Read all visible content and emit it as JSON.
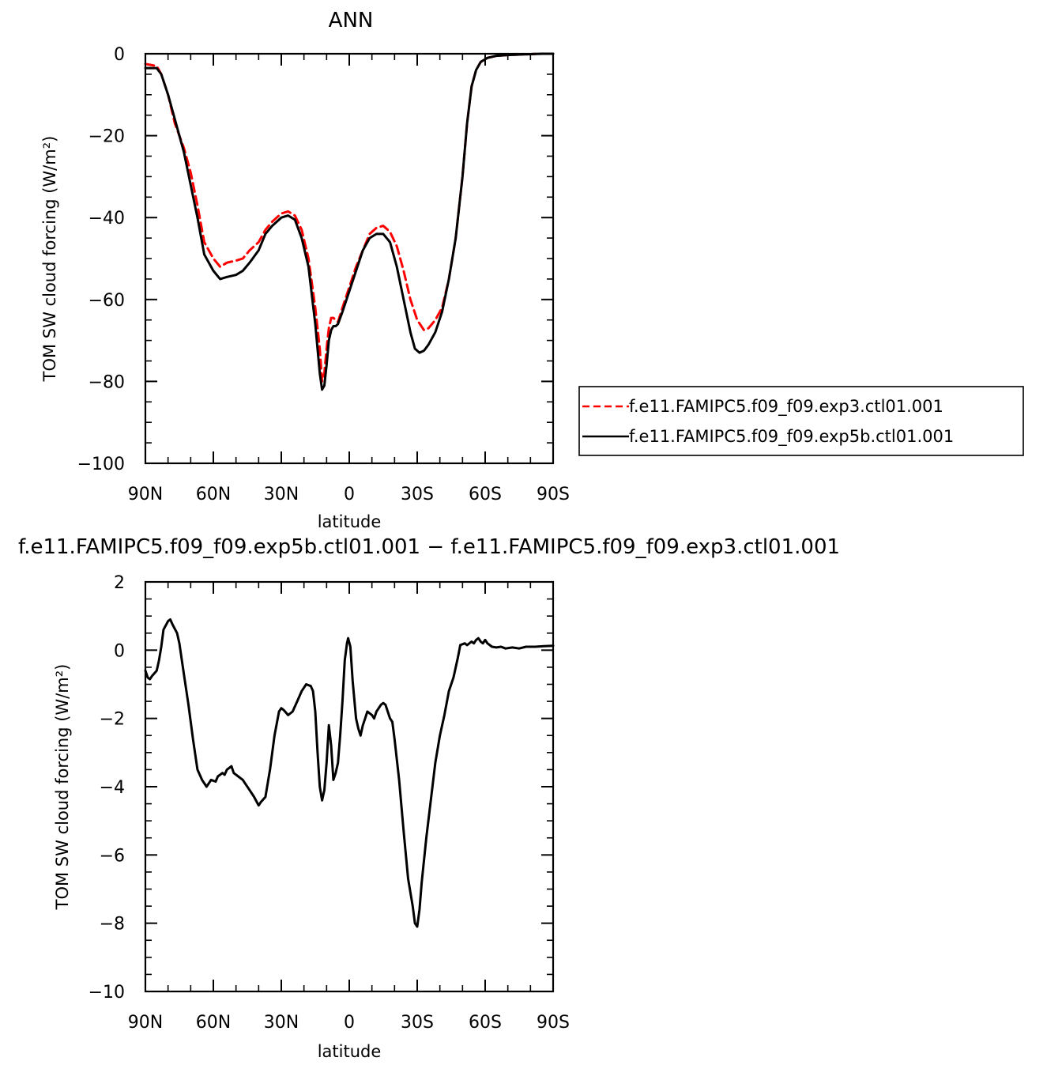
{
  "chart_data": [
    {
      "type": "line",
      "title": "ANN",
      "xlabel": "latitude",
      "ylabel": "TOM SW cloud forcing (W/m²)",
      "ylim": [
        -100,
        0
      ],
      "xlim": [
        90,
        -90
      ],
      "xticks": [
        {
          "value": 90,
          "label": "90N"
        },
        {
          "value": 60,
          "label": "60N"
        },
        {
          "value": 30,
          "label": "30N"
        },
        {
          "value": 0,
          "label": "0"
        },
        {
          "value": -30,
          "label": "30S"
        },
        {
          "value": -60,
          "label": "60S"
        },
        {
          "value": -90,
          "label": "90S"
        }
      ],
      "yticks": [
        {
          "value": 0,
          "label": "0"
        },
        {
          "value": -20,
          "label": "−20"
        },
        {
          "value": -40,
          "label": "−40"
        },
        {
          "value": -60,
          "label": "−60"
        },
        {
          "value": -80,
          "label": "−80"
        },
        {
          "value": -100,
          "label": "−100"
        }
      ],
      "legend_position": "right",
      "series": [
        {
          "name": "f.e11.FAMIPC5.f09_f09.exp3.ctl01.001",
          "color": "#ff0000",
          "style": "dashed",
          "points": [
            [
              90,
              -2.5
            ],
            [
              85,
              -3
            ],
            [
              83,
              -5
            ],
            [
              80,
              -10
            ],
            [
              77,
              -17
            ],
            [
              73,
              -23
            ],
            [
              70,
              -29
            ],
            [
              67,
              -37
            ],
            [
              64,
              -46
            ],
            [
              60,
              -50
            ],
            [
              57,
              -52
            ],
            [
              54,
              -51
            ],
            [
              50,
              -50.5
            ],
            [
              47,
              -50
            ],
            [
              44,
              -48
            ],
            [
              40,
              -46
            ],
            [
              37,
              -43
            ],
            [
              34,
              -41
            ],
            [
              30,
              -39
            ],
            [
              27,
              -38.5
            ],
            [
              24,
              -39.5
            ],
            [
              21,
              -43
            ],
            [
              18,
              -50
            ],
            [
              15,
              -62
            ],
            [
              13,
              -72
            ],
            [
              12,
              -80
            ],
            [
              11,
              -78
            ],
            [
              10,
              -72
            ],
            [
              9,
              -67
            ],
            [
              8,
              -64.5
            ],
            [
              7,
              -64.5
            ],
            [
              6,
              -65
            ],
            [
              5,
              -65.5
            ],
            [
              3,
              -62
            ],
            [
              0,
              -57
            ],
            [
              -3,
              -52
            ],
            [
              -6,
              -48
            ],
            [
              -9,
              -44
            ],
            [
              -12,
              -42.5
            ],
            [
              -15,
              -42
            ],
            [
              -18,
              -43.5
            ],
            [
              -21,
              -47
            ],
            [
              -24,
              -53
            ],
            [
              -27,
              -60
            ],
            [
              -30,
              -65
            ],
            [
              -33,
              -67.5
            ],
            [
              -35,
              -67
            ],
            [
              -38,
              -65
            ],
            [
              -41,
              -62
            ],
            [
              -44,
              -55
            ],
            [
              -47,
              -45
            ],
            [
              -50,
              -30
            ],
            [
              -52,
              -17
            ],
            [
              -54,
              -8
            ],
            [
              -56,
              -4
            ],
            [
              -58,
              -2
            ],
            [
              -61,
              -1
            ],
            [
              -65,
              -0.5
            ],
            [
              -70,
              -0.3
            ],
            [
              -75,
              -0.2
            ],
            [
              -80,
              -0.1
            ],
            [
              -85,
              0
            ],
            [
              -90,
              0
            ]
          ]
        },
        {
          "name": "f.e11.FAMIPC5.f09_f09.exp5b.ctl01.001",
          "color": "#000000",
          "style": "solid",
          "points": [
            [
              90,
              -3.5
            ],
            [
              85,
              -3.5
            ],
            [
              83,
              -5
            ],
            [
              80,
              -10
            ],
            [
              77,
              -16
            ],
            [
              73,
              -24
            ],
            [
              70,
              -32
            ],
            [
              67,
              -40
            ],
            [
              64,
              -49
            ],
            [
              60,
              -53
            ],
            [
              57,
              -55
            ],
            [
              54,
              -54.5
            ],
            [
              50,
              -54
            ],
            [
              47,
              -53
            ],
            [
              44,
              -51
            ],
            [
              40,
              -48
            ],
            [
              37,
              -44
            ],
            [
              34,
              -42
            ],
            [
              30,
              -40
            ],
            [
              27,
              -39.5
            ],
            [
              24,
              -40.5
            ],
            [
              21,
              -45
            ],
            [
              18,
              -52
            ],
            [
              15,
              -66
            ],
            [
              13,
              -78
            ],
            [
              12,
              -82
            ],
            [
              11,
              -81
            ],
            [
              10,
              -76
            ],
            [
              9,
              -70
            ],
            [
              8,
              -67.5
            ],
            [
              7,
              -66.5
            ],
            [
              6,
              -66.5
            ],
            [
              5,
              -66
            ],
            [
              3,
              -63
            ],
            [
              0,
              -58
            ],
            [
              -3,
              -53
            ],
            [
              -6,
              -48
            ],
            [
              -9,
              -45
            ],
            [
              -12,
              -44
            ],
            [
              -15,
              -44
            ],
            [
              -18,
              -46
            ],
            [
              -21,
              -52
            ],
            [
              -24,
              -60
            ],
            [
              -27,
              -68
            ],
            [
              -29,
              -72
            ],
            [
              -31,
              -73
            ],
            [
              -33,
              -72.5
            ],
            [
              -35,
              -71
            ],
            [
              -38,
              -68
            ],
            [
              -41,
              -63
            ],
            [
              -44,
              -55
            ],
            [
              -47,
              -45
            ],
            [
              -50,
              -30
            ],
            [
              -52,
              -17
            ],
            [
              -54,
              -8
            ],
            [
              -56,
              -4
            ],
            [
              -58,
              -2
            ],
            [
              -61,
              -1
            ],
            [
              -65,
              -0.5
            ],
            [
              -70,
              -0.3
            ],
            [
              -75,
              -0.2
            ],
            [
              -80,
              -0.1
            ],
            [
              -85,
              0
            ],
            [
              -90,
              0
            ]
          ]
        }
      ]
    },
    {
      "type": "line",
      "title": "f.e11.FAMIPC5.f09_f09.exp5b.ctl01.001 − f.e11.FAMIPC5.f09_f09.exp3.ctl01.001",
      "xlabel": "latitude",
      "ylabel": "TOM SW cloud forcing (W/m²)",
      "ylim": [
        -10,
        2
      ],
      "xlim": [
        90,
        -90
      ],
      "xticks": [
        {
          "value": 90,
          "label": "90N"
        },
        {
          "value": 60,
          "label": "60N"
        },
        {
          "value": 30,
          "label": "30N"
        },
        {
          "value": 0,
          "label": "0"
        },
        {
          "value": -30,
          "label": "30S"
        },
        {
          "value": -60,
          "label": "60S"
        },
        {
          "value": -90,
          "label": "90S"
        }
      ],
      "yticks": [
        {
          "value": 2,
          "label": "2"
        },
        {
          "value": 0,
          "label": "0"
        },
        {
          "value": -2,
          "label": "−2"
        },
        {
          "value": -4,
          "label": "−4"
        },
        {
          "value": -6,
          "label": "−6"
        },
        {
          "value": -8,
          "label": "−8"
        },
        {
          "value": -10,
          "label": "−10"
        }
      ],
      "series": [
        {
          "color": "#000000",
          "style": "solid",
          "points": [
            [
              90,
              -0.6
            ],
            [
              89,
              -0.8
            ],
            [
              88,
              -0.85
            ],
            [
              87,
              -0.75
            ],
            [
              85,
              -0.6
            ],
            [
              84,
              -0.3
            ],
            [
              83,
              0.1
            ],
            [
              82,
              0.6
            ],
            [
              80,
              0.85
            ],
            [
              79,
              0.9
            ],
            [
              78,
              0.75
            ],
            [
              76,
              0.5
            ],
            [
              75,
              0.2
            ],
            [
              73,
              -0.7
            ],
            [
              71,
              -1.6
            ],
            [
              69,
              -2.6
            ],
            [
              67,
              -3.5
            ],
            [
              65,
              -3.8
            ],
            [
              63,
              -4.0
            ],
            [
              62,
              -3.9
            ],
            [
              61,
              -3.8
            ],
            [
              59,
              -3.85
            ],
            [
              58,
              -3.7
            ],
            [
              56,
              -3.6
            ],
            [
              55,
              -3.65
            ],
            [
              54,
              -3.5
            ],
            [
              52,
              -3.4
            ],
            [
              51,
              -3.6
            ],
            [
              49,
              -3.7
            ],
            [
              47,
              -3.8
            ],
            [
              46,
              -3.9
            ],
            [
              44,
              -4.1
            ],
            [
              42,
              -4.3
            ],
            [
              40,
              -4.55
            ],
            [
              39,
              -4.45
            ],
            [
              37,
              -4.3
            ],
            [
              35,
              -3.5
            ],
            [
              33,
              -2.5
            ],
            [
              31,
              -1.8
            ],
            [
              30,
              -1.7
            ],
            [
              29,
              -1.75
            ],
            [
              27,
              -1.9
            ],
            [
              25,
              -1.8
            ],
            [
              23,
              -1.5
            ],
            [
              21,
              -1.2
            ],
            [
              19,
              -1.0
            ],
            [
              17,
              -1.05
            ],
            [
              16,
              -1.2
            ],
            [
              15,
              -1.8
            ],
            [
              14,
              -3.0
            ],
            [
              13,
              -4.0
            ],
            [
              12,
              -4.4
            ],
            [
              11,
              -4.1
            ],
            [
              10,
              -3.3
            ],
            [
              9,
              -2.2
            ],
            [
              8,
              -2.8
            ],
            [
              7,
              -3.8
            ],
            [
              6,
              -3.6
            ],
            [
              5,
              -3.3
            ],
            [
              4,
              -2.5
            ],
            [
              3,
              -1.5
            ],
            [
              2,
              -0.3
            ],
            [
              1,
              0.2
            ],
            [
              0.5,
              0.35
            ],
            [
              -0.5,
              0.1
            ],
            [
              -1.5,
              -0.9
            ],
            [
              -3,
              -2.0
            ],
            [
              -4,
              -2.3
            ],
            [
              -5,
              -2.5
            ],
            [
              -6,
              -2.2
            ],
            [
              -7,
              -2.0
            ],
            [
              -8,
              -1.8
            ],
            [
              -9,
              -1.85
            ],
            [
              -10,
              -1.9
            ],
            [
              -11,
              -2.0
            ],
            [
              -12,
              -1.8
            ],
            [
              -14,
              -1.6
            ],
            [
              -15,
              -1.55
            ],
            [
              -16,
              -1.6
            ],
            [
              -17,
              -1.8
            ],
            [
              -18,
              -2.0
            ],
            [
              -19,
              -2.1
            ],
            [
              -20,
              -2.6
            ],
            [
              -22,
              -3.8
            ],
            [
              -24,
              -5.3
            ],
            [
              -26,
              -6.7
            ],
            [
              -28,
              -7.5
            ],
            [
              -29,
              -8.0
            ],
            [
              -30,
              -8.1
            ],
            [
              -31,
              -7.6
            ],
            [
              -32,
              -6.8
            ],
            [
              -34,
              -5.5
            ],
            [
              -36,
              -4.4
            ],
            [
              -38,
              -3.3
            ],
            [
              -40,
              -2.5
            ],
            [
              -42,
              -1.9
            ],
            [
              -44,
              -1.2
            ],
            [
              -46,
              -0.8
            ],
            [
              -48,
              -0.2
            ],
            [
              -49,
              0.15
            ],
            [
              -51,
              0.2
            ],
            [
              -52,
              0.15
            ],
            [
              -54,
              0.25
            ],
            [
              -55,
              0.2
            ],
            [
              -56,
              0.3
            ],
            [
              -57,
              0.35
            ],
            [
              -58,
              0.25
            ],
            [
              -59,
              0.2
            ],
            [
              -60,
              0.3
            ],
            [
              -61,
              0.2
            ],
            [
              -63,
              0.1
            ],
            [
              -65,
              0.08
            ],
            [
              -67,
              0.1
            ],
            [
              -69,
              0.05
            ],
            [
              -72,
              0.08
            ],
            [
              -75,
              0.05
            ],
            [
              -78,
              0.1
            ],
            [
              -82,
              0.1
            ],
            [
              -86,
              0.12
            ],
            [
              -90,
              0.13
            ]
          ]
        }
      ]
    }
  ]
}
